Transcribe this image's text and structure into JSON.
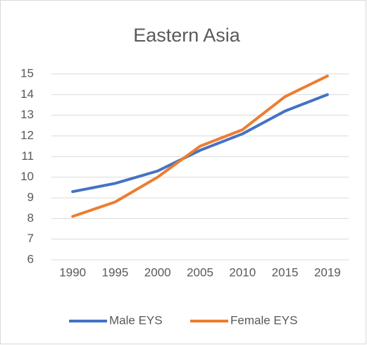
{
  "chart_data": {
    "type": "line",
    "title": "Eastern Asia",
    "categories": [
      "1990",
      "1995",
      "2000",
      "2005",
      "2010",
      "2015",
      "2019"
    ],
    "series": [
      {
        "name": "Male EYS",
        "color": "#4472c4",
        "values": [
          9.3,
          9.7,
          10.3,
          11.3,
          12.1,
          13.2,
          14.0
        ]
      },
      {
        "name": "Female EYS",
        "color": "#ed7d31",
        "values": [
          8.1,
          8.8,
          10.0,
          11.5,
          12.3,
          13.9,
          14.9
        ]
      }
    ],
    "ylim": [
      6,
      15
    ],
    "yticks": [
      6,
      7,
      8,
      9,
      10,
      11,
      12,
      13,
      14,
      15
    ],
    "grid": true,
    "legend": "bottom"
  }
}
